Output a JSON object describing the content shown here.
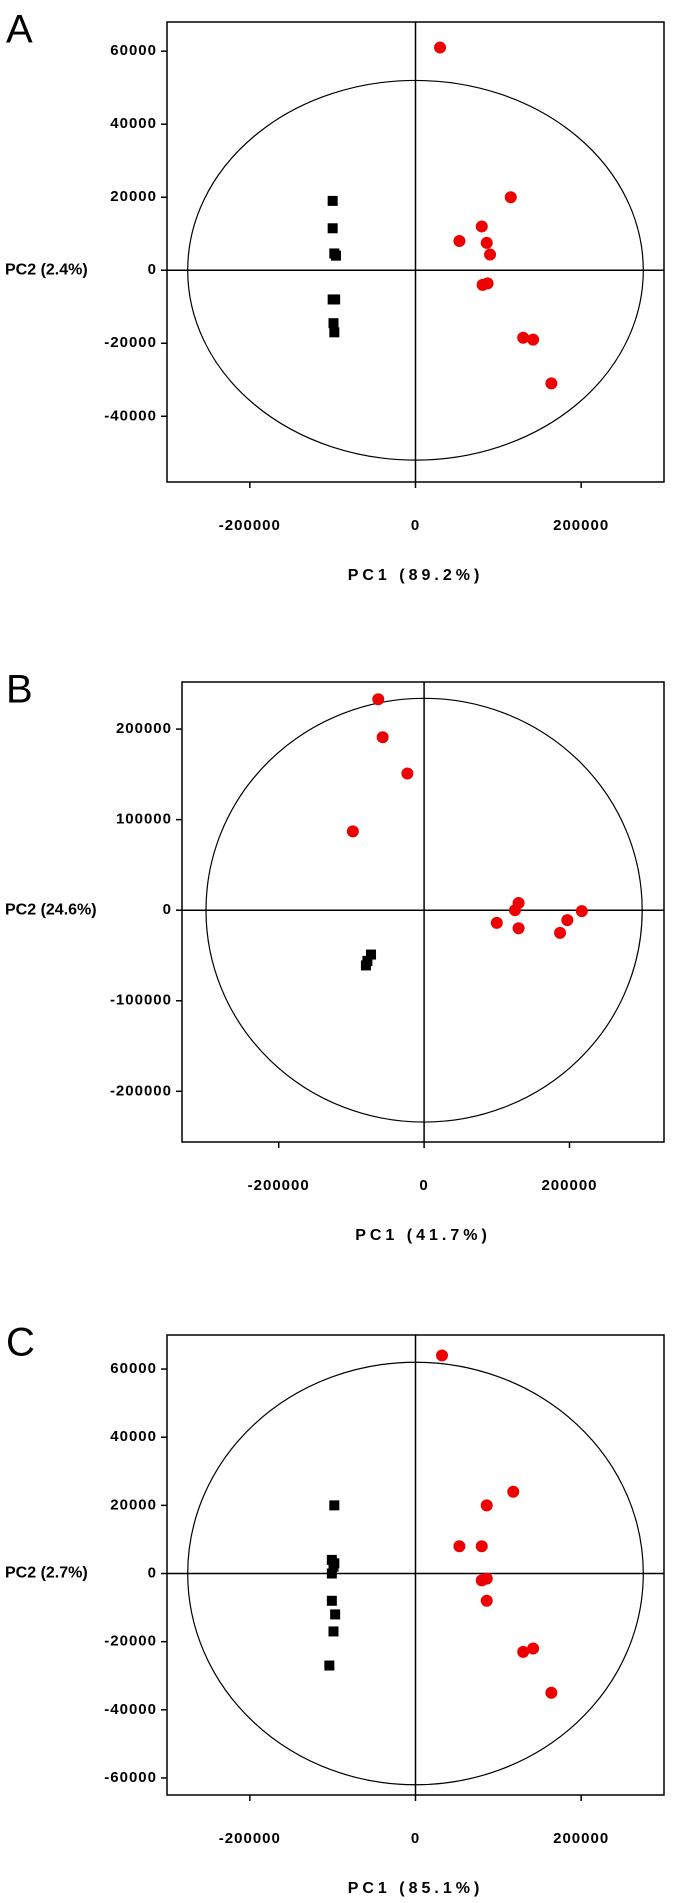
{
  "chart_data": [
    {
      "type": "scatter",
      "label": "A",
      "x_label": "PC1 (89.2%)",
      "y_label": "PC2 (2.4%)",
      "xlim": [
        -300000,
        300000
      ],
      "xticks": [
        -200000,
        0,
        200000
      ],
      "ylim": [
        -58000,
        68000
      ],
      "yticks": [
        -40000,
        -20000,
        0,
        20000,
        40000,
        60000
      ],
      "ellipse_radii": [
        275000,
        52000
      ],
      "series": [
        {
          "color": "#000000",
          "marker": "square",
          "x": [
            -100000,
            -100000,
            -98000,
            -96000,
            -100000,
            -97000,
            -99000,
            -98000
          ],
          "y": [
            19000,
            11500,
            4600,
            4000,
            -8000,
            -8000,
            -14500,
            -17000
          ]
        },
        {
          "color": "#ee0000",
          "marker": "circle",
          "x": [
            29600,
            115000,
            80000,
            53000,
            86000,
            90000,
            81000,
            87000,
            130000,
            142000,
            164000
          ],
          "y": [
            61000,
            20000,
            12000,
            8000,
            7500,
            4300,
            -4000,
            -3600,
            -18500,
            -19000,
            -31000
          ]
        }
      ]
    },
    {
      "type": "scatter",
      "label": "B",
      "x_label": "PC1 (41.7%)",
      "y_label": "PC2 (24.6%)",
      "xlim": [
        -333000,
        330000
      ],
      "xticks": [
        -200000,
        0,
        200000
      ],
      "ylim": [
        -256000,
        252000
      ],
      "yticks": [
        -200000,
        -100000,
        0,
        100000,
        200000
      ],
      "ellipse_radii": [
        300000,
        234000
      ],
      "series": [
        {
          "color": "#000000",
          "marker": "square",
          "x": [
            -73000,
            -78000,
            -80000
          ],
          "y": [
            -49000,
            -56000,
            -61000
          ]
        },
        {
          "color": "#ee0000",
          "marker": "circle",
          "x": [
            -63000,
            -57000,
            -23000,
            -98000,
            130000,
            125000,
            100000,
            130000,
            197000,
            217000,
            187000
          ],
          "y": [
            233000,
            191000,
            151000,
            87000,
            8000,
            0,
            -14000,
            -20000,
            -11000,
            -1000,
            -25000
          ]
        }
      ]
    },
    {
      "type": "scatter",
      "label": "C",
      "x_label": "PC1 (85.1%)",
      "y_label": "PC2 (2.7%)",
      "xlim": [
        -300000,
        300000
      ],
      "xticks": [
        -200000,
        0,
        200000
      ],
      "ylim": [
        -65000,
        70000
      ],
      "yticks": [
        -60000,
        -40000,
        -20000,
        0,
        20000,
        40000,
        60000
      ],
      "ellipse_radii": [
        275000,
        62000
      ],
      "series": [
        {
          "color": "#000000",
          "marker": "square",
          "x": [
            -98000,
            -101000,
            -98000,
            -99000,
            -101000,
            -101000,
            -97000,
            -99000,
            -104000
          ],
          "y": [
            20000,
            4000,
            3000,
            2000,
            0,
            -8000,
            -12000,
            -17000,
            -27000
          ]
        },
        {
          "color": "#ee0000",
          "marker": "circle",
          "x": [
            32000,
            118000,
            86000,
            53000,
            80000,
            80000,
            86000,
            86000,
            130000,
            142000,
            164000
          ],
          "y": [
            64000,
            24000,
            20000,
            8000,
            8000,
            -2000,
            -1500,
            -8000,
            -23000,
            -22000,
            -35000
          ]
        }
      ]
    }
  ]
}
